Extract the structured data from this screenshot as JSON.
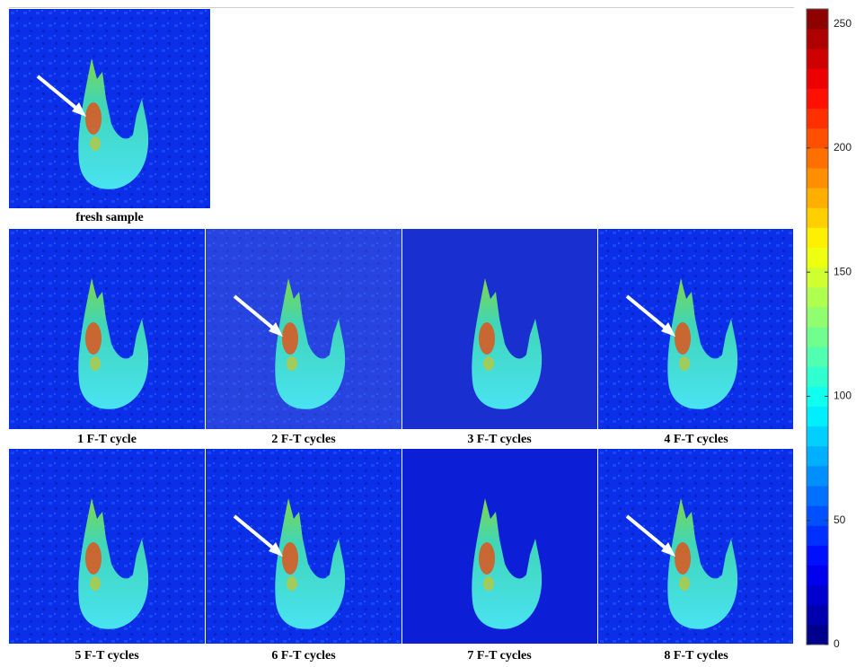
{
  "panels": [
    {
      "label": "fresh sample"
    },
    {
      "label": "1 F-T cycle"
    },
    {
      "label": "2 F-T cycles"
    },
    {
      "label": "3 F-T cycles"
    },
    {
      "label": "4 F-T cycles"
    },
    {
      "label": "5 F-T cycles"
    },
    {
      "label": "6 F-T cycles"
    },
    {
      "label": "7 F-T cycles"
    },
    {
      "label": "8 F-T cycles"
    }
  ],
  "colorbar": {
    "range": [
      0,
      256
    ],
    "ticks": [
      0,
      50,
      100,
      150,
      200,
      250
    ]
  }
}
